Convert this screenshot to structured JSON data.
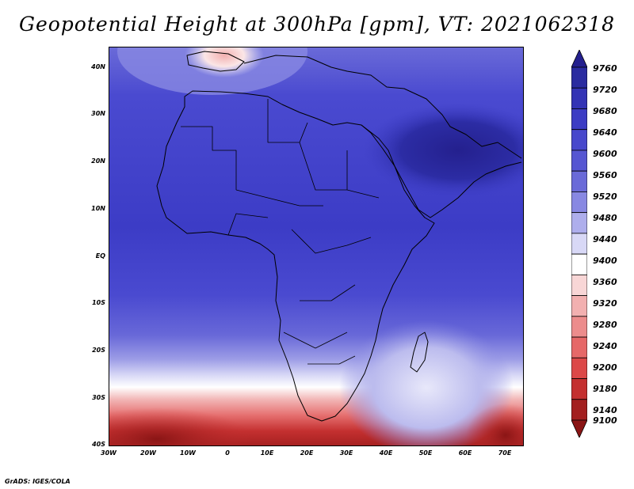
{
  "title": "Geopotential Height at 300hPa [gpm], VT: 2021062318",
  "footer": "GrADS: IGES/COLA",
  "map": {
    "projection": "latlon",
    "lon_range": [
      -30,
      75
    ],
    "lat_range": [
      -40,
      45
    ],
    "lat_ticks": [
      "40N",
      "30N",
      "20N",
      "10N",
      "EQ",
      "10S",
      "20S",
      "30S",
      "40S"
    ],
    "lon_ticks": [
      "30W",
      "20W",
      "10W",
      "0",
      "10E",
      "20E",
      "30E",
      "40E",
      "50E",
      "60E",
      "70E"
    ],
    "field": "geopotential height at 300hPa",
    "units": "gpm"
  },
  "colorbar": {
    "orientation": "vertical",
    "labels": [
      "9760",
      "9720",
      "9680",
      "9640",
      "9600",
      "9560",
      "9520",
      "9480",
      "9440",
      "9400",
      "9360",
      "9320",
      "9280",
      "9240",
      "9200",
      "9180",
      "9140",
      "9100"
    ],
    "colors": [
      "#24208e",
      "#2a2ba0",
      "#3333b5",
      "#3c3cc4",
      "#4848cc",
      "#5656d2",
      "#6a6ad8",
      "#8888e2",
      "#aeaeec",
      "#d8d8f6",
      "#ffffff",
      "#f8d6d6",
      "#f2b0b0",
      "#ec8c8c",
      "#e66868",
      "#dc4848",
      "#c43030",
      "#a31f1f",
      "#8a1515"
    ]
  }
}
